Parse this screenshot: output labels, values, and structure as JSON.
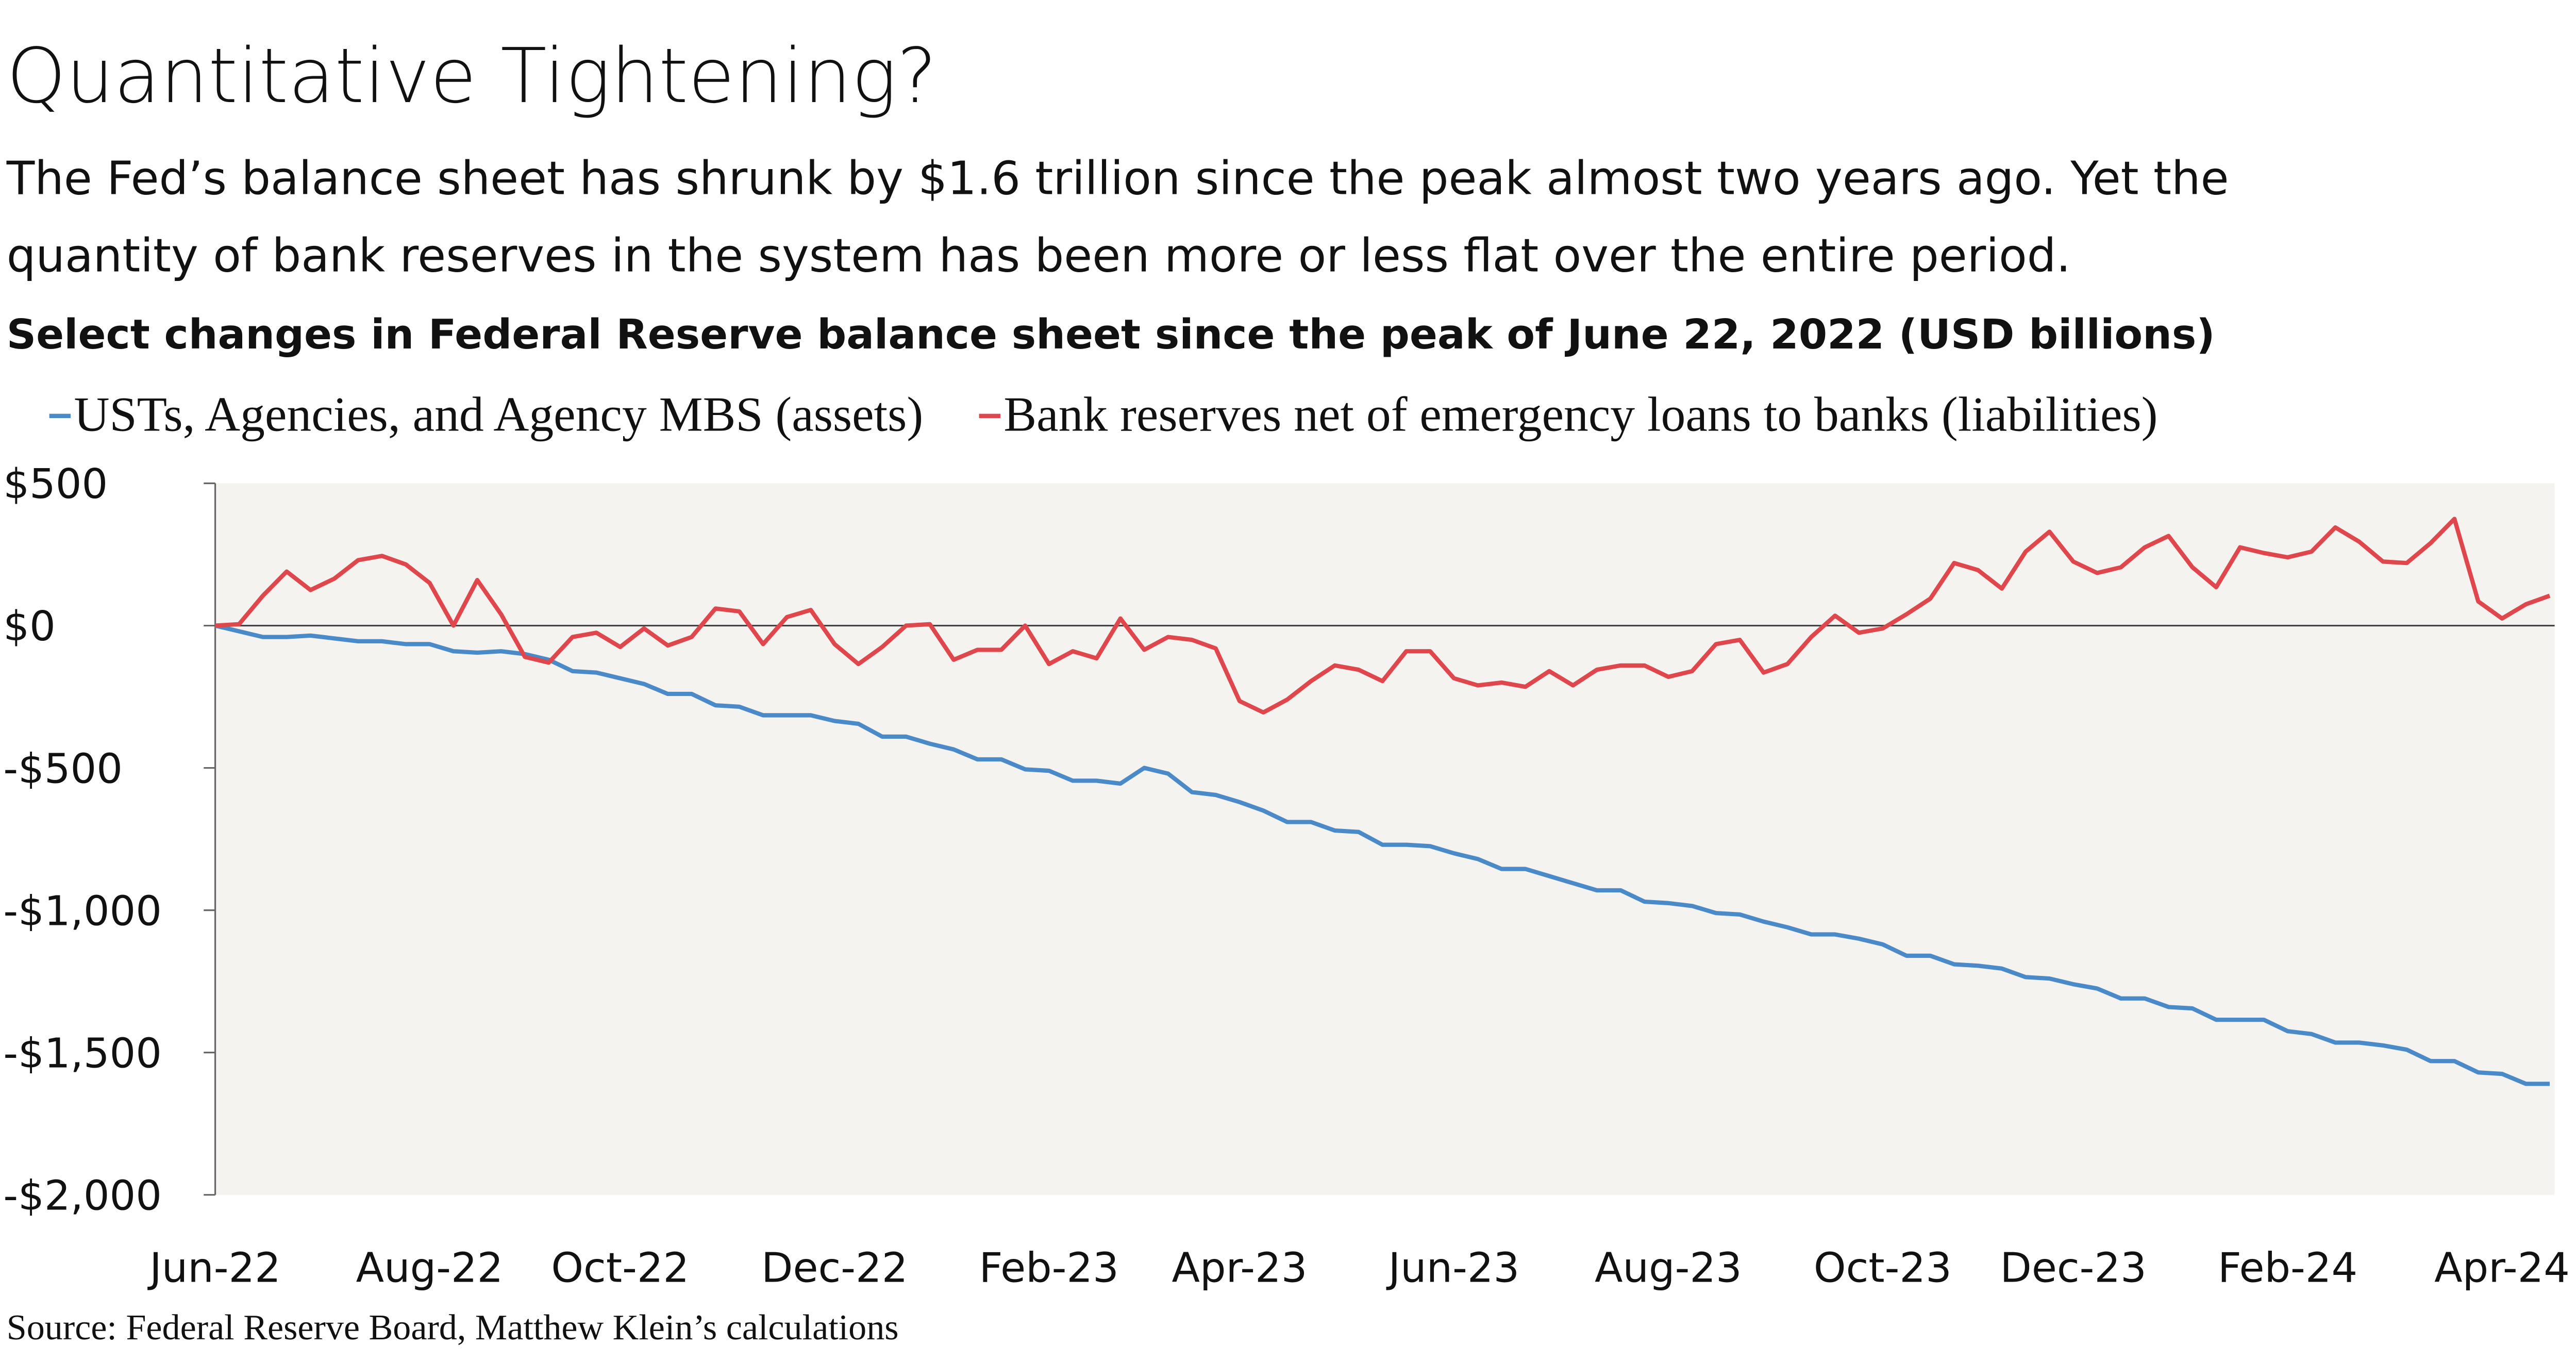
{
  "chart_data": {
    "type": "line",
    "title": "Quantitative Tightening?",
    "subtitle": [
      "The Fed’s balance sheet has shrunk by $1.6 trillion since the peak almost two years ago. Yet the",
      "quantity of bank reserves in the system has been more or less flat over the entire period."
    ],
    "chart_title": "Select changes in Federal Reserve balance sheet since the peak of June 22, 2022 (USD billions)",
    "source": "Source: Federal Reserve Board, Matthew Klein’s calculations",
    "categories": [
      "Jun-22",
      null,
      null,
      null,
      null,
      null,
      null,
      null,
      null,
      "Aug-22",
      null,
      null,
      null,
      null,
      null,
      null,
      null,
      "Oct-22",
      null,
      null,
      null,
      null,
      null,
      null,
      null,
      null,
      "Dec-22",
      null,
      null,
      null,
      null,
      null,
      null,
      null,
      null,
      "Feb-23",
      null,
      null,
      null,
      null,
      null,
      null,
      null,
      "Apr-23",
      null,
      null,
      null,
      null,
      null,
      null,
      null,
      null,
      "Jun-23",
      null,
      null,
      null,
      null,
      null,
      null,
      null,
      null,
      "Aug-23",
      null,
      null,
      null,
      null,
      null,
      null,
      null,
      null,
      "Oct-23",
      null,
      null,
      null,
      null,
      null,
      null,
      null,
      "Dec-23",
      null,
      null,
      null,
      null,
      null,
      null,
      null,
      null,
      "Feb-24",
      null,
      null,
      null,
      null,
      null,
      null,
      null,
      null,
      "Apr-24",
      null,
      null
    ],
    "series": [
      {
        "name": "USTs, Agencies, and Agency MBS (assets)",
        "color": "#4a8ac9",
        "values": [
          0,
          -20,
          -40,
          -40,
          -35,
          -45,
          -55,
          -55,
          -65,
          -65,
          -90,
          -95,
          -90,
          -100,
          -120,
          -160,
          -165,
          -185,
          -205,
          -240,
          -240,
          -280,
          -285,
          -315,
          -315,
          -315,
          -335,
          -345,
          -390,
          -390,
          -415,
          -435,
          -470,
          -470,
          -505,
          -510,
          -545,
          -545,
          -555,
          -500,
          -520,
          -585,
          -595,
          -620,
          -650,
          -690,
          -690,
          -720,
          -725,
          -770,
          -770,
          -775,
          -800,
          -820,
          -855,
          -855,
          -880,
          -905,
          -930,
          -930,
          -970,
          -975,
          -985,
          -1010,
          -1015,
          -1040,
          -1060,
          -1085,
          -1085,
          -1100,
          -1120,
          -1160,
          -1160,
          -1190,
          -1195,
          -1205,
          -1235,
          -1240,
          -1260,
          -1275,
          -1310,
          -1310,
          -1340,
          -1345,
          -1385,
          -1385,
          -1385,
          -1425,
          -1435,
          -1465,
          -1465,
          -1475,
          -1490,
          -1530,
          -1530,
          -1570,
          -1575,
          -1610,
          -1610
        ]
      },
      {
        "name": "Bank reserves net of emergency loans to banks (liabilities)",
        "color": "#e0474c",
        "values": [
          0,
          5,
          105,
          190,
          125,
          165,
          230,
          245,
          215,
          150,
          0,
          160,
          40,
          -110,
          -130,
          -40,
          -25,
          -75,
          -10,
          -70,
          -40,
          60,
          50,
          -65,
          30,
          55,
          -65,
          -135,
          -75,
          0,
          5,
          -120,
          -85,
          -85,
          0,
          -135,
          -90,
          -115,
          25,
          -85,
          -40,
          -50,
          -80,
          -265,
          -305,
          -260,
          -195,
          -140,
          -155,
          -195,
          -90,
          -90,
          -185,
          -210,
          -200,
          -215,
          -160,
          -210,
          -155,
          -140,
          -140,
          -180,
          -160,
          -65,
          -50,
          -165,
          -135,
          -40,
          35,
          -25,
          -10,
          40,
          95,
          220,
          195,
          130,
          260,
          330,
          225,
          185,
          205,
          275,
          315,
          205,
          135,
          275,
          255,
          240,
          260,
          345,
          295,
          225,
          220,
          290,
          375,
          85,
          25,
          75,
          105
        ]
      }
    ],
    "ylim": [
      -2000,
      500
    ],
    "yticks": [
      {
        "value": 500,
        "label": "$500"
      },
      {
        "value": 0,
        "label": "$0"
      },
      {
        "value": -500,
        "label": "-$500"
      },
      {
        "value": -1000,
        "label": "-$1,000"
      },
      {
        "value": -1500,
        "label": "-$1,500"
      },
      {
        "value": -2000,
        "label": "-$2,000"
      }
    ],
    "plot_background": "#f5f3ef"
  }
}
